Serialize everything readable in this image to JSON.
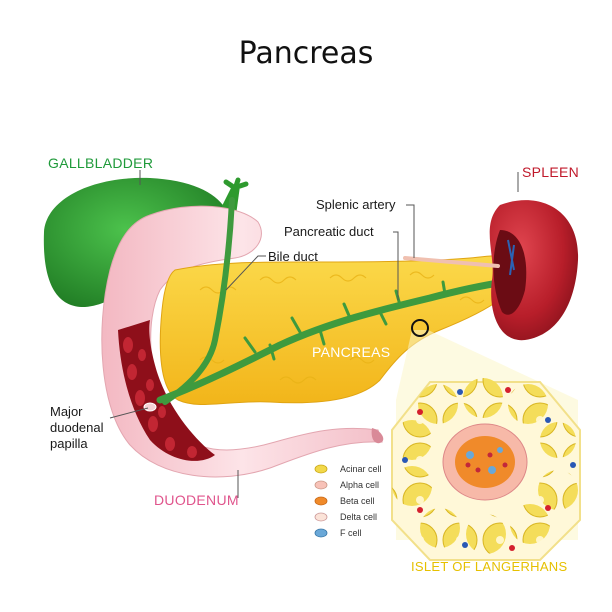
{
  "title": "Pancreas",
  "labels": {
    "gallbladder": "GALLBLADDER",
    "spleen": "SPLEEN",
    "splenic_artery": "Splenic artery",
    "pancreatic_duct": "Pancreatic duct",
    "bile_duct": "Bile duct",
    "pancreas": "PANCREAS",
    "papilla_line1": "Major",
    "papilla_line2": "duodenal",
    "papilla_line3": "papilla",
    "duodenum": "DUODENUM",
    "islet": "ISLET OF LANGERHANS"
  },
  "legend": [
    {
      "label": "Acinar  cell",
      "color": "#f2d84a",
      "icon": "acinar-cell-icon"
    },
    {
      "label": "Alpha cell",
      "color": "#f7c2b8",
      "icon": "alpha-cell-icon"
    },
    {
      "label": "Beta cell",
      "color": "#f08a2a",
      "icon": "beta-cell-icon"
    },
    {
      "label": "Delta cell",
      "color": "#fbe3d8",
      "icon": "delta-cell-icon"
    },
    {
      "label": "F cell",
      "color": "#6aa8d8",
      "icon": "f-cell-icon"
    }
  ],
  "colors": {
    "gallbladder": "#2e9a2e",
    "pancreas": "#f7c72a",
    "duodenum": "#f6c9cf",
    "spleen": "#b81e2a",
    "duct": "#3e9a3e",
    "islet_outline": "#f7e27a"
  }
}
